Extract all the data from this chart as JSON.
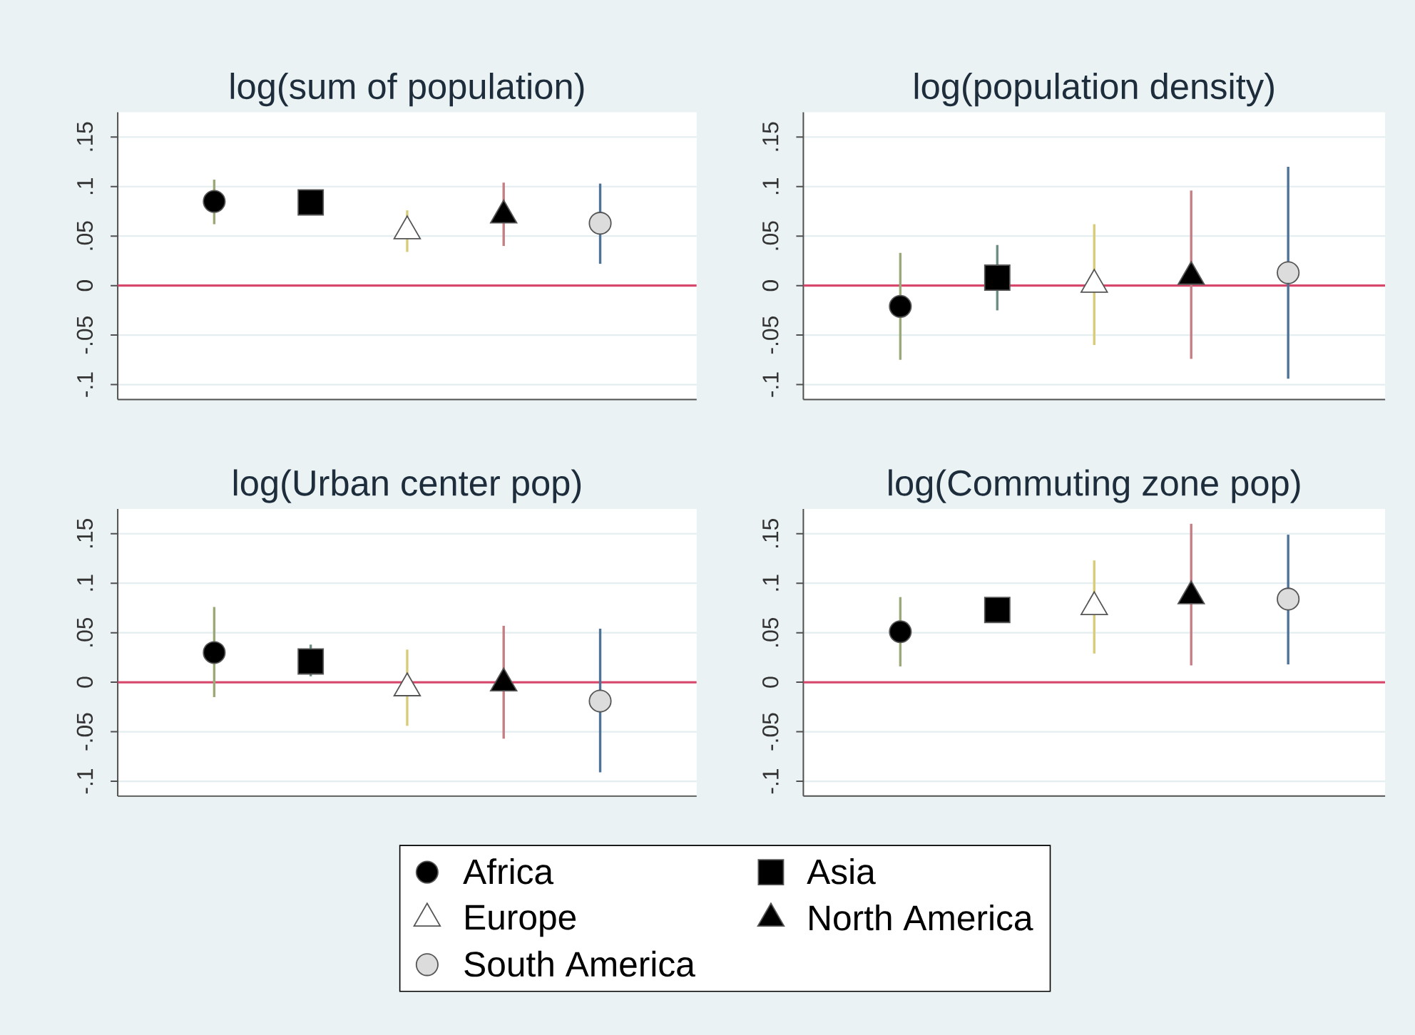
{
  "chart_data": [
    {
      "type": "scatter",
      "title": "log(sum of population)",
      "categories": [
        null,
        null,
        null,
        null,
        null
      ],
      "ylim": [
        -0.115,
        0.175
      ],
      "yticks": [
        {
          "value": -0.1,
          "label": "-.1"
        },
        {
          "value": -0.05,
          "label": "-.05"
        },
        0,
        {
          "value": 0.05,
          "label": ".05"
        },
        {
          "value": 0.1,
          "label": ".1"
        },
        {
          "value": 0.15,
          "label": ".15"
        }
      ],
      "grid": "y",
      "tick_labels": "y",
      "ref_lines": [
        {
          "axis": "y",
          "value": 0,
          "color": "#d7476b"
        }
      ],
      "series": [
        {
          "color": "#000000",
          "marker": "circle",
          "values": [
            0.085,
            null,
            null,
            null,
            null
          ],
          "errors": [
            [
              0.062,
              0.107
            ],
            null,
            null,
            null,
            null
          ]
        },
        {
          "color": "#000000",
          "marker": "square",
          "values": [
            null,
            0.084,
            null,
            null,
            null
          ],
          "errors": [
            null,
            null,
            null,
            null,
            null
          ]
        },
        {
          "color": "#ffffff",
          "marker": "triangle",
          "values": [
            null,
            null,
            0.055,
            null,
            null
          ],
          "errors": [
            null,
            null,
            [
              0.034,
              0.076
            ],
            null,
            null
          ]
        },
        {
          "color": "#000000",
          "marker": "triangle",
          "values": [
            null,
            null,
            null,
            0.071,
            null
          ],
          "errors": [
            null,
            null,
            null,
            [
              0.04,
              0.104
            ],
            null
          ]
        },
        {
          "color": "#dcdcdc",
          "marker": "circle",
          "values": [
            null,
            null,
            null,
            null,
            0.063
          ],
          "errors": [
            null,
            null,
            null,
            null,
            [
              0.022,
              0.103
            ]
          ]
        }
      ]
    },
    {
      "type": "scatter",
      "title": "log(population density)",
      "categories": [
        null,
        null,
        null,
        null,
        null
      ],
      "ylim": [
        -0.115,
        0.175
      ],
      "yticks": [
        {
          "value": -0.1,
          "label": "-.1"
        },
        {
          "value": -0.05,
          "label": "-.05"
        },
        0,
        {
          "value": 0.05,
          "label": ".05"
        },
        {
          "value": 0.1,
          "label": ".1"
        },
        {
          "value": 0.15,
          "label": ".15"
        }
      ],
      "grid": "y",
      "tick_labels": "y",
      "ref_lines": [
        {
          "axis": "y",
          "value": 0,
          "color": "#d7476b"
        }
      ],
      "series": [
        {
          "color": "#000000",
          "marker": "circle",
          "values": [
            -0.021,
            null,
            null,
            null,
            null
          ],
          "errors": [
            [
              -0.075,
              0.033
            ],
            null,
            null,
            null,
            null
          ]
        },
        {
          "color": "#000000",
          "marker": "square",
          "values": [
            null,
            0.008,
            null,
            null,
            null
          ],
          "errors": [
            null,
            [
              -0.025,
              0.041
            ],
            null,
            null,
            null
          ]
        },
        {
          "color": "#ffffff",
          "marker": "triangle",
          "values": [
            null,
            null,
            0.001,
            null,
            null
          ],
          "errors": [
            null,
            null,
            [
              -0.06,
              0.062
            ],
            null,
            null
          ]
        },
        {
          "color": "#000000",
          "marker": "triangle",
          "values": [
            null,
            null,
            null,
            0.009,
            null
          ],
          "errors": [
            null,
            null,
            null,
            [
              -0.074,
              0.096
            ],
            null
          ]
        },
        {
          "color": "#dcdcdc",
          "marker": "circle",
          "values": [
            null,
            null,
            null,
            null,
            0.013
          ],
          "errors": [
            null,
            null,
            null,
            null,
            [
              -0.094,
              0.12
            ]
          ]
        }
      ]
    },
    {
      "type": "scatter",
      "title": "log(Urban center pop)",
      "categories": [
        null,
        null,
        null,
        null,
        null
      ],
      "ylim": [
        -0.115,
        0.175
      ],
      "yticks": [
        {
          "value": -0.1,
          "label": "-.1"
        },
        {
          "value": -0.05,
          "label": "-.05"
        },
        0,
        {
          "value": 0.05,
          "label": ".05"
        },
        {
          "value": 0.1,
          "label": ".1"
        },
        {
          "value": 0.15,
          "label": ".15"
        }
      ],
      "grid": "y",
      "tick_labels": "y",
      "legend": "bottom",
      "ref_lines": [
        {
          "axis": "y",
          "value": 0,
          "color": "#d7476b"
        }
      ],
      "series": [
        {
          "name": "Africa",
          "color": "#000000",
          "marker": "circle",
          "values": [
            0.03,
            null,
            null,
            null,
            null
          ],
          "errors": [
            [
              -0.015,
              0.076
            ],
            null,
            null,
            null,
            null
          ]
        },
        {
          "name": "Asia",
          "color": "#000000",
          "marker": "square",
          "values": [
            null,
            0.021,
            null,
            null,
            null
          ],
          "errors": [
            null,
            [
              0.006,
              0.038
            ],
            null,
            null,
            null
          ]
        },
        {
          "name": "Europe",
          "color": "#ffffff",
          "marker": "triangle",
          "values": [
            null,
            null,
            -0.006,
            null,
            null
          ],
          "errors": [
            null,
            null,
            [
              -0.044,
              0.033
            ],
            null,
            null
          ]
        },
        {
          "name": "North America",
          "color": "#000000",
          "marker": "triangle",
          "values": [
            null,
            null,
            null,
            -0.001,
            null
          ],
          "errors": [
            null,
            null,
            null,
            [
              -0.057,
              0.057
            ],
            null
          ]
        },
        {
          "name": "South America",
          "color": "#dcdcdc",
          "marker": "circle",
          "values": [
            null,
            null,
            null,
            null,
            -0.019
          ],
          "errors": [
            null,
            null,
            null,
            null,
            [
              -0.091,
              0.054
            ]
          ]
        }
      ]
    },
    {
      "type": "scatter",
      "title": "log(Commuting zone pop)",
      "categories": [
        null,
        null,
        null,
        null,
        null
      ],
      "ylim": [
        -0.115,
        0.175
      ],
      "yticks": [
        {
          "value": -0.1,
          "label": "-.1"
        },
        {
          "value": -0.05,
          "label": "-.05"
        },
        0,
        {
          "value": 0.05,
          "label": ".05"
        },
        {
          "value": 0.1,
          "label": ".1"
        },
        {
          "value": 0.15,
          "label": ".15"
        }
      ],
      "grid": "y",
      "tick_labels": "y",
      "ref_lines": [
        {
          "axis": "y",
          "value": 0,
          "color": "#d7476b"
        }
      ],
      "series": [
        {
          "color": "#000000",
          "marker": "circle",
          "values": [
            0.051,
            null,
            null,
            null,
            null
          ],
          "errors": [
            [
              0.016,
              0.086
            ],
            null,
            null,
            null,
            null
          ]
        },
        {
          "color": "#000000",
          "marker": "square",
          "values": [
            null,
            0.073,
            null,
            null,
            null
          ],
          "errors": [
            null,
            null,
            null,
            null,
            null
          ]
        },
        {
          "color": "#ffffff",
          "marker": "triangle",
          "values": [
            null,
            null,
            0.076,
            null,
            null
          ],
          "errors": [
            null,
            null,
            [
              0.029,
              0.123
            ],
            null,
            null
          ]
        },
        {
          "color": "#000000",
          "marker": "triangle",
          "values": [
            null,
            null,
            null,
            0.087,
            null
          ],
          "errors": [
            null,
            null,
            null,
            [
              0.017,
              0.16
            ],
            null
          ]
        },
        {
          "color": "#dcdcdc",
          "marker": "circle",
          "values": [
            null,
            null,
            null,
            null,
            0.084
          ],
          "errors": [
            null,
            null,
            null,
            null,
            [
              0.018,
              0.149
            ]
          ]
        }
      ]
    }
  ]
}
